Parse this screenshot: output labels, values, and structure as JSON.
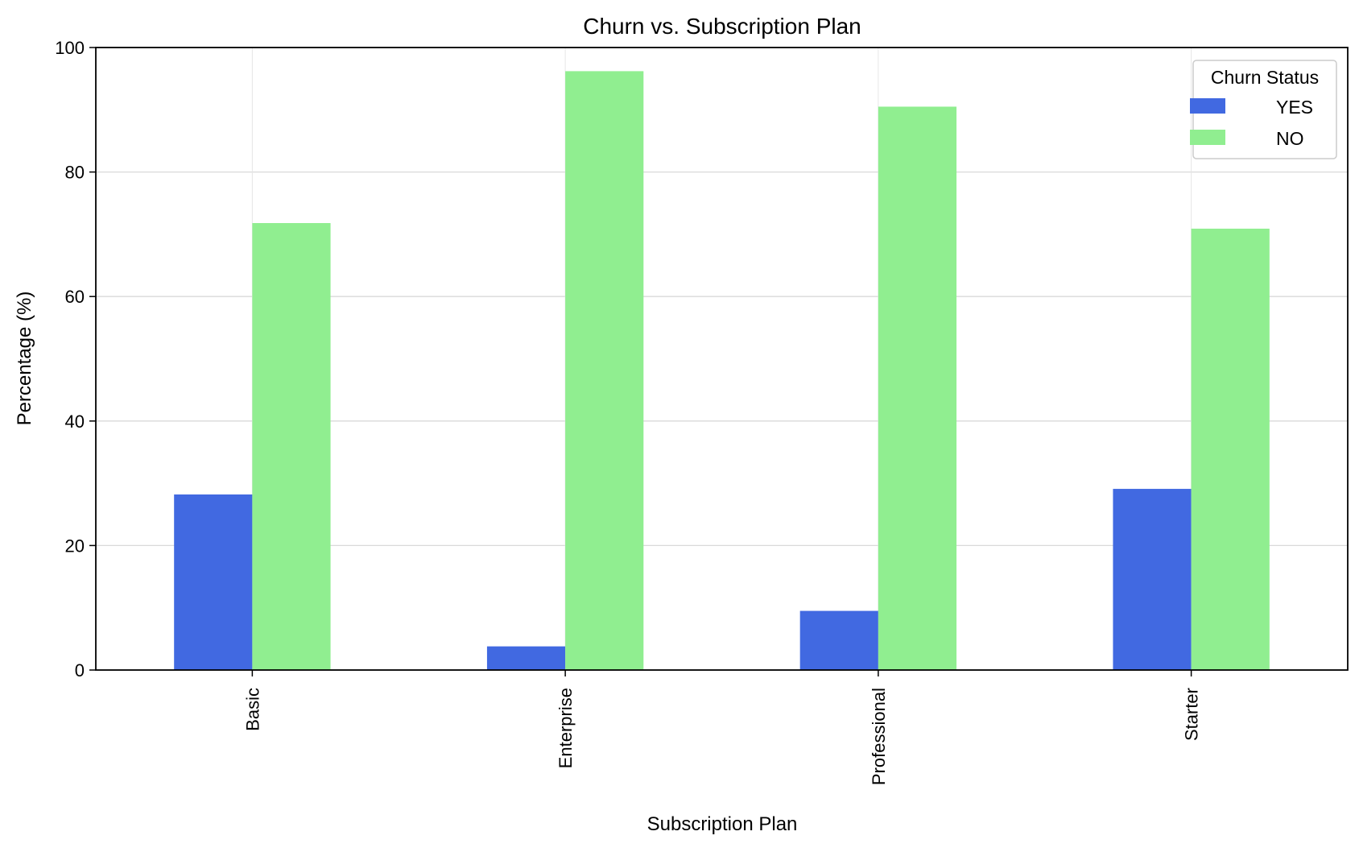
{
  "chart_data": {
    "type": "bar",
    "title": "Churn vs. Subscription Plan",
    "xlabel": "Subscription Plan",
    "ylabel": "Percentage (%)",
    "categories": [
      "Basic",
      "Enterprise",
      "Professional",
      "Starter"
    ],
    "series": [
      {
        "name": "YES",
        "color": "#4169E1",
        "values": [
          28.2,
          3.8,
          9.5,
          29.1
        ]
      },
      {
        "name": "NO",
        "color": "#90EE90",
        "values": [
          71.8,
          96.2,
          90.5,
          70.9
        ]
      }
    ],
    "ylim": [
      0,
      100
    ],
    "yticks": [
      0,
      20,
      40,
      60,
      80,
      100
    ],
    "grid": true,
    "legend": {
      "title": "Churn Status",
      "position": "top-right"
    }
  }
}
